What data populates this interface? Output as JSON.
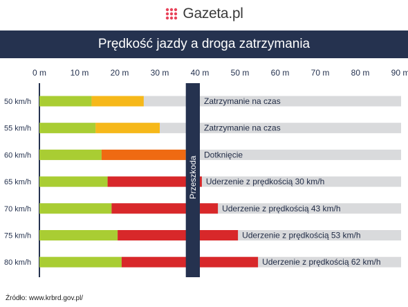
{
  "brand": {
    "logo_text": "Gazeta.pl",
    "logo_dot_color": "#e8435a"
  },
  "title": "Prędkość jazdy a droga zatrzymania",
  "source": "Źródło: www.krbrd.gov.pl/",
  "chart_data": {
    "type": "bar",
    "orientation": "horizontal",
    "stacked": true,
    "title": "Prędkość jazdy a droga zatrzymania",
    "x_ticks": [
      "0 m",
      "10 m",
      "20 m",
      "30 m",
      "40 m",
      "50 m",
      "60 m",
      "70 m",
      "80 m",
      "90 m"
    ],
    "xlim": [
      0,
      90
    ],
    "grid": false,
    "obstacle": {
      "label": "Przeszkoda",
      "position_m": 36.5,
      "width_m": 3.5
    },
    "colors": {
      "reaction": "#a9cd33",
      "braking_stop": "#f6b81a",
      "braking_touch": "#ef6a12",
      "braking_impact": "#d8282a",
      "track": "#d9dadc",
      "obstacle": "#25324f",
      "axis": "#25324f"
    },
    "rows": [
      {
        "label": "50 km/h",
        "reaction_m": 13,
        "total_m": 26,
        "outcome": "stop",
        "annotation": "Zatrzymanie na czas"
      },
      {
        "label": "55 km/h",
        "reaction_m": 14,
        "total_m": 30,
        "outcome": "stop",
        "annotation": "Zatrzymanie na czas"
      },
      {
        "label": "60 km/h",
        "reaction_m": 15.5,
        "total_m": 36.5,
        "outcome": "touch",
        "annotation": "Dotknięcie"
      },
      {
        "label": "65 km/h",
        "reaction_m": 17,
        "total_m": 40.5,
        "outcome": "impact",
        "annotation": "Uderzenie z prędkością 30 km/h"
      },
      {
        "label": "70 km/h",
        "reaction_m": 18,
        "total_m": 44.5,
        "outcome": "impact",
        "annotation": "Uderzenie z prędkością 43 km/h"
      },
      {
        "label": "75 km/h",
        "reaction_m": 19.5,
        "total_m": 49.5,
        "outcome": "impact",
        "annotation": "Uderzenie z prędkością 53 km/h"
      },
      {
        "label": "80 km/h",
        "reaction_m": 20.5,
        "total_m": 54.5,
        "outcome": "impact",
        "annotation": "Uderzenie z prędkością 62 km/h"
      }
    ]
  }
}
